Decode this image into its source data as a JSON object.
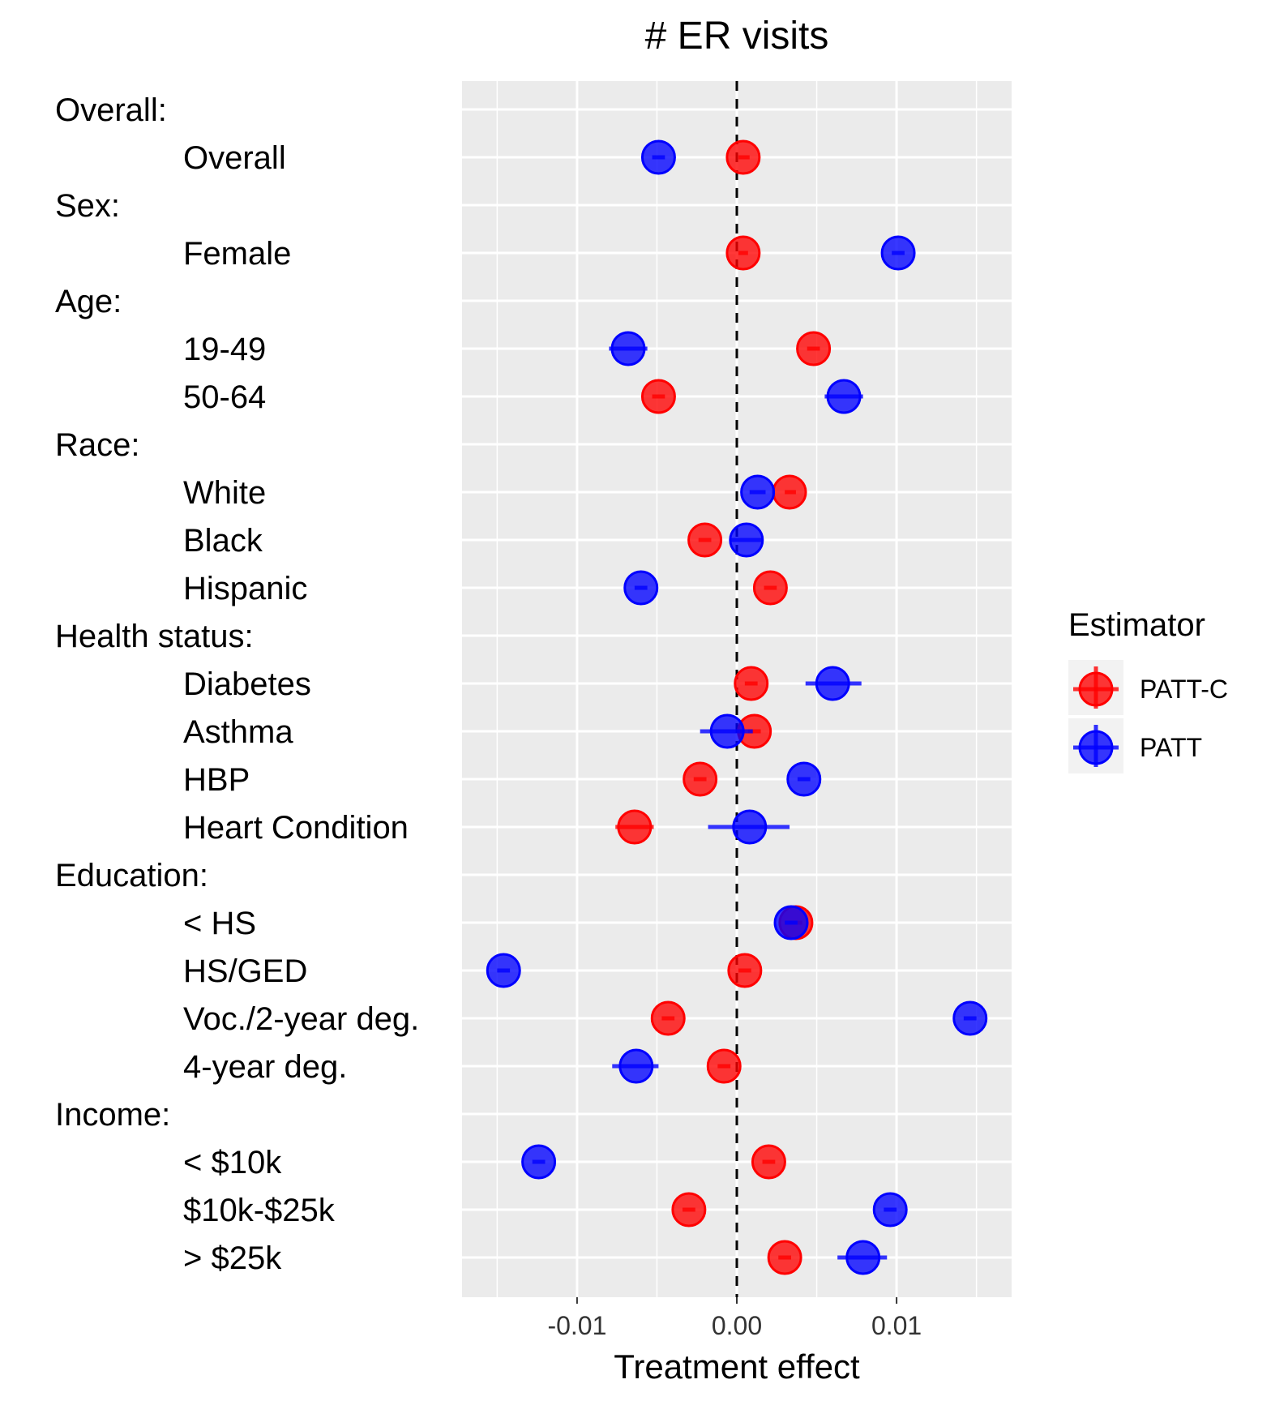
{
  "chart_data": {
    "type": "scatter",
    "title": "# ER visits",
    "xlabel": "Treatment effect",
    "ylabel": "",
    "xlim": [
      -0.0172,
      0.0172
    ],
    "xticks": [
      -0.01,
      0.0,
      0.01
    ],
    "xtick_labels": [
      "-0.01",
      "0.00",
      "0.01"
    ],
    "reference_line": {
      "x": 0,
      "style": "dashed",
      "color": "#000000"
    },
    "grid": true,
    "legend": {
      "title": "Estimator",
      "position": "right"
    },
    "rows": [
      {
        "label": "Overall:",
        "kind": "group"
      },
      {
        "label": "Overall",
        "kind": "item"
      },
      {
        "label": "Sex:",
        "kind": "group"
      },
      {
        "label": "Female",
        "kind": "item"
      },
      {
        "label": "Age:",
        "kind": "group"
      },
      {
        "label": "19-49",
        "kind": "item"
      },
      {
        "label": "50-64",
        "kind": "item"
      },
      {
        "label": "Race:",
        "kind": "group"
      },
      {
        "label": "White",
        "kind": "item"
      },
      {
        "label": "Black",
        "kind": "item"
      },
      {
        "label": "Hispanic",
        "kind": "item"
      },
      {
        "label": "Health status:",
        "kind": "group"
      },
      {
        "label": "Diabetes",
        "kind": "item"
      },
      {
        "label": "Asthma",
        "kind": "item"
      },
      {
        "label": "HBP",
        "kind": "item"
      },
      {
        "label": "Heart Condition",
        "kind": "item"
      },
      {
        "label": "Education:",
        "kind": "group"
      },
      {
        "label": "< HS",
        "kind": "item"
      },
      {
        "label": "HS/GED",
        "kind": "item"
      },
      {
        "label": "Voc./2-year deg.",
        "kind": "item"
      },
      {
        "label": "4-year deg.",
        "kind": "item"
      },
      {
        "label": "Income:",
        "kind": "group"
      },
      {
        "label": "< $10k",
        "kind": "item"
      },
      {
        "label": "$10k-$25k",
        "kind": "item"
      },
      {
        "label": "> $25k",
        "kind": "item"
      }
    ],
    "series": [
      {
        "name": "PATT-C",
        "color": "#ff0000",
        "points": [
          {
            "row": 1,
            "x": 0.0004,
            "lo": 0.0001,
            "hi": 0.0008
          },
          {
            "row": 3,
            "x": 0.0004,
            "lo": 0.0001,
            "hi": 0.0007
          },
          {
            "row": 5,
            "x": 0.0048,
            "lo": 0.0044,
            "hi": 0.0052
          },
          {
            "row": 6,
            "x": -0.0049,
            "lo": -0.0053,
            "hi": -0.0045
          },
          {
            "row": 8,
            "x": 0.0033,
            "lo": 0.003,
            "hi": 0.0037
          },
          {
            "row": 9,
            "x": -0.002,
            "lo": -0.0024,
            "hi": -0.0016
          },
          {
            "row": 10,
            "x": 0.0021,
            "lo": 0.0017,
            "hi": 0.0025
          },
          {
            "row": 12,
            "x": 0.0009,
            "lo": 0.0005,
            "hi": 0.0013
          },
          {
            "row": 13,
            "x": 0.0011,
            "lo": 0.0007,
            "hi": 0.0015
          },
          {
            "row": 14,
            "x": -0.0023,
            "lo": -0.0027,
            "hi": -0.0019
          },
          {
            "row": 15,
            "x": -0.0064,
            "lo": -0.0076,
            "hi": -0.0052
          },
          {
            "row": 17,
            "x": 0.0037,
            "lo": 0.0033,
            "hi": 0.0041
          },
          {
            "row": 18,
            "x": 0.0005,
            "lo": 0.0001,
            "hi": 0.0009
          },
          {
            "row": 19,
            "x": -0.0043,
            "lo": -0.0047,
            "hi": -0.0039
          },
          {
            "row": 20,
            "x": -0.0008,
            "lo": -0.0012,
            "hi": -0.0004
          },
          {
            "row": 22,
            "x": 0.002,
            "lo": 0.0016,
            "hi": 0.0024
          },
          {
            "row": 23,
            "x": -0.003,
            "lo": -0.0034,
            "hi": -0.0026
          },
          {
            "row": 24,
            "x": 0.003,
            "lo": 0.0026,
            "hi": 0.0034
          }
        ]
      },
      {
        "name": "PATT",
        "color": "#0000ff",
        "points": [
          {
            "row": 1,
            "x": -0.0049,
            "lo": -0.0053,
            "hi": -0.0045
          },
          {
            "row": 3,
            "x": 0.0101,
            "lo": 0.0097,
            "hi": 0.0105
          },
          {
            "row": 5,
            "x": -0.0068,
            "lo": -0.008,
            "hi": -0.0056
          },
          {
            "row": 6,
            "x": 0.0067,
            "lo": 0.0055,
            "hi": 0.0079
          },
          {
            "row": 8,
            "x": 0.0013,
            "lo": 0.0008,
            "hi": 0.0018
          },
          {
            "row": 9,
            "x": 0.0006,
            "lo": -0.0004,
            "hi": 0.0016
          },
          {
            "row": 10,
            "x": -0.006,
            "lo": -0.0064,
            "hi": -0.0056
          },
          {
            "row": 12,
            "x": 0.006,
            "lo": 0.0043,
            "hi": 0.0078
          },
          {
            "row": 13,
            "x": -0.0006,
            "lo": -0.0023,
            "hi": 0.001
          },
          {
            "row": 14,
            "x": 0.0042,
            "lo": 0.0038,
            "hi": 0.0046
          },
          {
            "row": 15,
            "x": 0.0008,
            "lo": -0.0018,
            "hi": 0.0033
          },
          {
            "row": 17,
            "x": 0.0034,
            "lo": 0.003,
            "hi": 0.0038
          },
          {
            "row": 18,
            "x": -0.0146,
            "lo": -0.015,
            "hi": -0.0142
          },
          {
            "row": 19,
            "x": 0.0146,
            "lo": 0.0142,
            "hi": 0.015
          },
          {
            "row": 20,
            "x": -0.0063,
            "lo": -0.0078,
            "hi": -0.0049
          },
          {
            "row": 22,
            "x": -0.0124,
            "lo": -0.0128,
            "hi": -0.012
          },
          {
            "row": 23,
            "x": 0.0096,
            "lo": 0.0092,
            "hi": 0.01
          },
          {
            "row": 24,
            "x": 0.0079,
            "lo": 0.0063,
            "hi": 0.0094
          }
        ]
      }
    ]
  }
}
